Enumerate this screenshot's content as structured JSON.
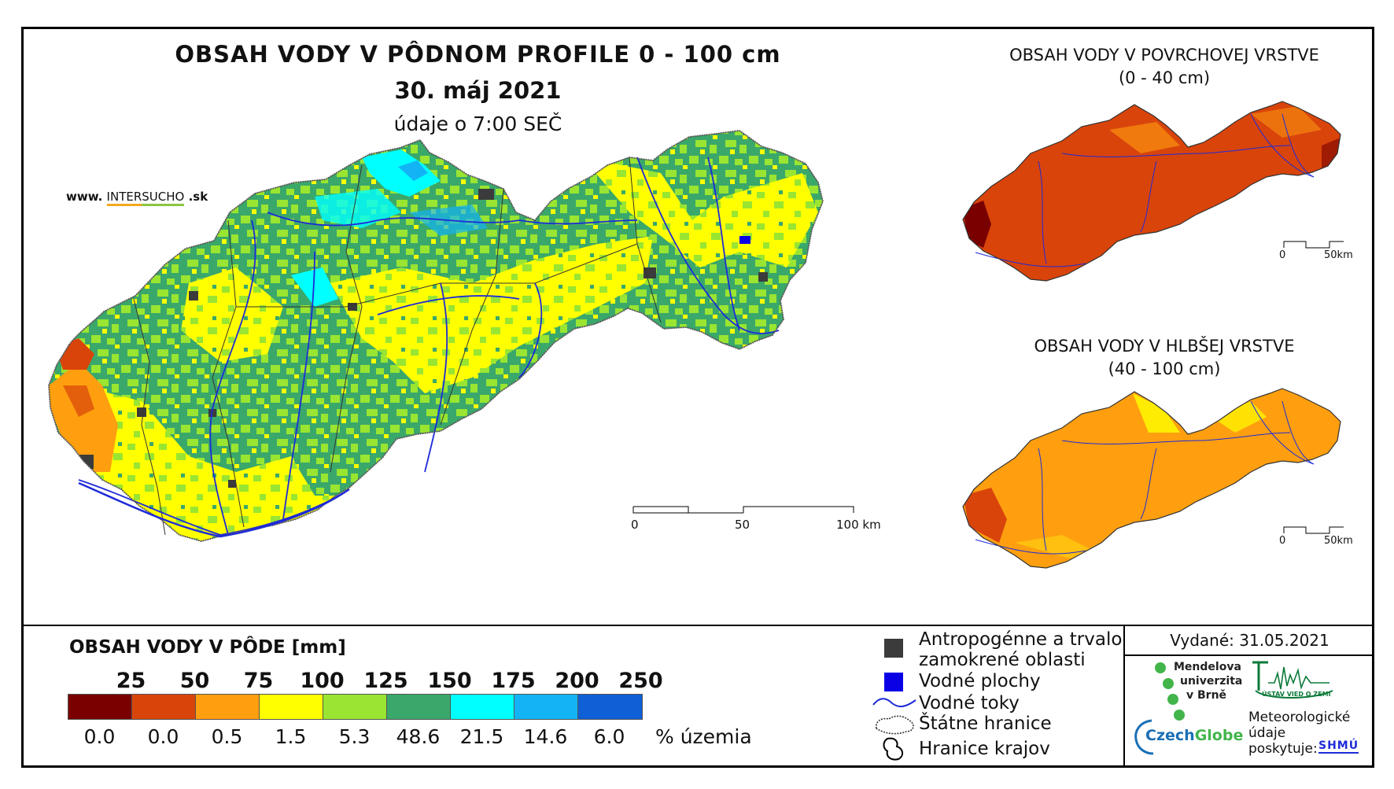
{
  "main": {
    "title": "OBSAH VODY V PÔDNOM PROFILE 0 - 100 cm",
    "date": "30. máj 2021",
    "time_note": "údaje o 7:00 SEČ"
  },
  "website": {
    "prefix": "www.",
    "brand_a": "INTER",
    "brand_b": "SUCHO",
    "suffix": ".sk"
  },
  "main_scale": {
    "labels": [
      "0",
      "50",
      "100 km"
    ]
  },
  "inset_top": {
    "title_line1": "OBSAH VODY V POVRCHOVEJ VRSTVE",
    "title_line2": "(0 - 40 cm)",
    "scale_labels": [
      "0",
      "50km"
    ]
  },
  "inset_bottom": {
    "title_line1": "OBSAH VODY V HLBŠEJ VRSTVE",
    "title_line2": "(40 - 100 cm)",
    "scale_labels": [
      "0",
      "50km"
    ]
  },
  "legend": {
    "title": "OBSAH VODY V PÔDE [mm]",
    "thresholds": [
      "25",
      "50",
      "75",
      "100",
      "125",
      "150",
      "175",
      "200",
      "250"
    ],
    "colors": [
      "#7a0000",
      "#d9440b",
      "#ff9f0f",
      "#ffff00",
      "#99e531",
      "#3aa86a",
      "#00ffff",
      "#13b4f5",
      "#0f5fd6"
    ],
    "percentages": [
      "0.0",
      "0.0",
      "0.5",
      "1.5",
      "5.3",
      "48.6",
      "21.5",
      "14.6",
      "6.0"
    ],
    "percent_unit": "% územia"
  },
  "symbols": {
    "urban_line1": "Antropogénne a trvalo",
    "urban_line2": "zamokrené oblasti",
    "water_bodies": "Vodné plochy",
    "rivers": "Vodné toky",
    "state_border": "Štátne hranice",
    "regions_border": "Hranice krajov"
  },
  "issued": {
    "label": "Vydané: 31.05.2021"
  },
  "logos": {
    "mendel_line1": "Mendelova",
    "mendel_line2": "univerzita",
    "mendel_line3": "v Brně",
    "czechglobe_a": "Czech",
    "czechglobe_b": "Globe",
    "uvgz": "ÚSTAV VIED O ZEMI",
    "meteo_line1": "Meteorologické",
    "meteo_line2": "údaje",
    "meteo_line3": "poskytuje:",
    "shmu": "SHMÚ"
  }
}
